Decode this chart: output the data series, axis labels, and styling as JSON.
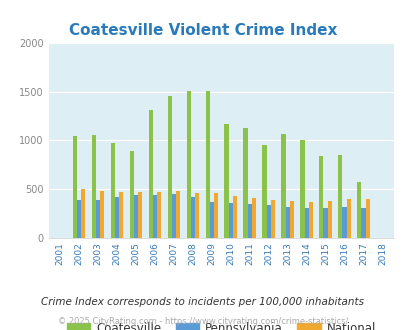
{
  "title": "Coatesville Violent Crime Index",
  "title_color": "#2b7bba",
  "years": [
    "2001",
    "2002",
    "2003",
    "2004",
    "2005",
    "2006",
    "2007",
    "2008",
    "2009",
    "2010",
    "2011",
    "2012",
    "2013",
    "2014",
    "2015",
    "2016",
    "2017",
    "2018"
  ],
  "coatesville": [
    null,
    1045,
    1055,
    975,
    885,
    1315,
    1455,
    1510,
    1505,
    1165,
    1130,
    955,
    1065,
    1000,
    840,
    850,
    575,
    null
  ],
  "pennsylvania": [
    null,
    390,
    385,
    415,
    435,
    440,
    450,
    420,
    370,
    355,
    350,
    335,
    310,
    300,
    305,
    310,
    305,
    null
  ],
  "national": [
    null,
    500,
    475,
    465,
    465,
    470,
    475,
    455,
    455,
    430,
    405,
    390,
    375,
    365,
    375,
    395,
    395,
    null
  ],
  "coatesville_color": "#8bc34a",
  "pennsylvania_color": "#5b9bd5",
  "national_color": "#f0a830",
  "bg_color": "#deeef5",
  "ylim": [
    0,
    2000
  ],
  "yticks": [
    0,
    500,
    1000,
    1500,
    2000
  ],
  "footer1": "Crime Index corresponds to incidents per 100,000 inhabitants",
  "footer2": "© 2025 CityRating.com - https://www.cityrating.com/crime-statistics/",
  "legend_labels": [
    "Coatesville",
    "Pennsylvania",
    "National"
  ]
}
